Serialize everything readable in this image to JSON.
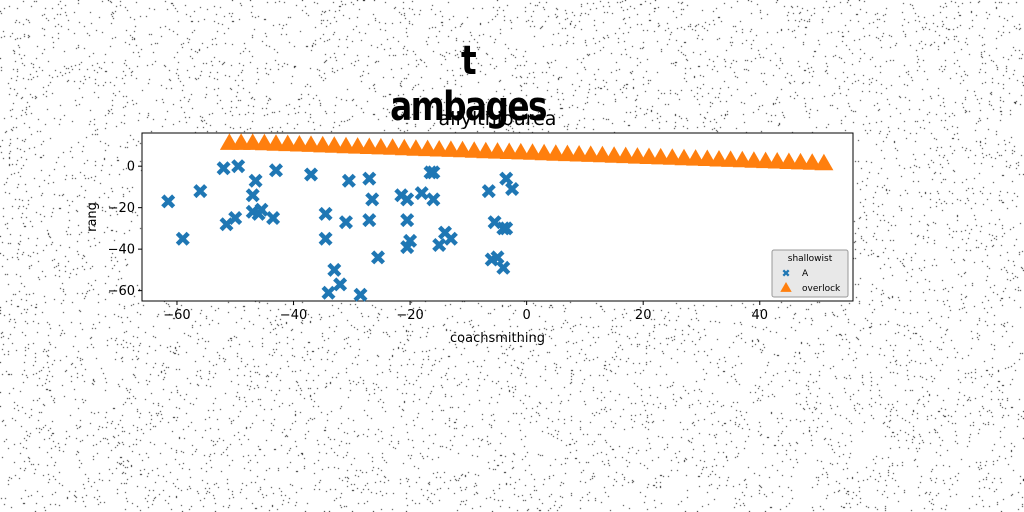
{
  "figure": {
    "suptitle": "t ambages"
  },
  "chart_data": {
    "type": "scatter",
    "title": "allylthiourea",
    "xlabel": "coachsmithing",
    "ylabel": "rang",
    "xlim": [
      -66,
      56
    ],
    "ylim": [
      -65,
      16
    ],
    "xticks": [
      -60,
      -40,
      -20,
      0,
      20,
      40
    ],
    "yticks": [
      0,
      -20,
      -40,
      -60
    ],
    "grid": false,
    "legend": {
      "title": "shallowist",
      "placement": "lower-right"
    },
    "series": [
      {
        "name": "A",
        "marker": "X",
        "color": "#1f77b4",
        "x": [
          -61.5,
          -59,
          -56,
          -52,
          -51.5,
          -49.5,
          -50,
          -47,
          -46.5,
          -47,
          -46,
          -45.5,
          -43,
          -43.5,
          -37,
          -34.5,
          -34.5,
          -34,
          -32,
          -33,
          -31,
          -30.5,
          -28.5,
          -27,
          -26.5,
          -27,
          -25.5,
          -21.5,
          -20.5,
          -20.5,
          -20,
          -20.5,
          -18,
          -16.5,
          -16,
          -16,
          -15,
          -14,
          -13,
          -6.5,
          -6,
          -5,
          -5.5,
          -4,
          -4,
          -3.5,
          -3.5,
          -2.5
        ],
        "y": [
          -17,
          -35,
          -12,
          -1,
          -28,
          0,
          -25,
          -14,
          -7,
          -22,
          -23,
          -21,
          -2,
          -25,
          -4,
          -23,
          -35,
          -61,
          -57,
          -50,
          -27,
          -7,
          -62,
          -6,
          -16,
          -26,
          -44,
          -14,
          -16,
          -39,
          -36,
          -26,
          -13,
          -3,
          -16,
          -3,
          -38,
          -32,
          -35,
          -12,
          -45,
          -44,
          -27,
          -30,
          -49,
          -6,
          -30,
          -11
        ],
        "values": [
          -17,
          -35,
          -12,
          -1,
          -28,
          0,
          -25,
          -14,
          -7,
          -22,
          -23,
          -21,
          -2,
          -25,
          -4,
          -23,
          -35,
          -61,
          -57,
          -50,
          -27,
          -7,
          -62,
          -6,
          -16,
          -26,
          -44,
          -14,
          -16,
          -39,
          -36,
          -26,
          -13,
          -3,
          -16,
          -3,
          -38,
          -32,
          -35,
          -12,
          -45,
          -44,
          -27,
          -30,
          -49,
          -6,
          -30,
          -11
        ]
      },
      {
        "name": "overlock",
        "marker": "^",
        "color": "#ff7f0e",
        "x": [
          -51,
          -49,
          -47,
          -45,
          -43,
          -41,
          -39,
          -37,
          -35,
          -33,
          -31,
          -29,
          -27,
          -25,
          -23,
          -21,
          -19,
          -17,
          -15,
          -13,
          -11,
          -9,
          -7,
          -5,
          -3,
          -1,
          1,
          3,
          5,
          7,
          9,
          11,
          13,
          15,
          17,
          19,
          21,
          23,
          25,
          27,
          29,
          31,
          33,
          35,
          37,
          39,
          41,
          43,
          45,
          47,
          49,
          51
        ],
        "y": [
          11,
          11,
          11,
          10.8,
          10.6,
          10.4,
          10.2,
          10,
          9.8,
          9.6,
          9.4,
          9.2,
          9,
          8.8,
          8.6,
          8.4,
          8.2,
          8,
          7.8,
          7.6,
          7.4,
          7.2,
          7,
          6.8,
          6.6,
          6.4,
          6.2,
          6,
          5.8,
          5.6,
          5.4,
          5.2,
          5,
          4.8,
          4.6,
          4.4,
          4.2,
          4,
          3.8,
          3.6,
          3.4,
          3.2,
          3,
          2.8,
          2.6,
          2.4,
          2.2,
          2,
          1.8,
          1.6,
          1.4,
          1.2
        ],
        "values": [
          11,
          11,
          11,
          10.8,
          10.6,
          10.4,
          10.2,
          10,
          9.8,
          9.6,
          9.4,
          9.2,
          9,
          8.8,
          8.6,
          8.4,
          8.2,
          8,
          7.8,
          7.6,
          7.4,
          7.2,
          7,
          6.8,
          6.6,
          6.4,
          6.2,
          6,
          5.8,
          5.6,
          5.4,
          5.2,
          5,
          4.8,
          4.6,
          4.4,
          4.2,
          4,
          3.8,
          3.6,
          3.4,
          3.2,
          3,
          2.8,
          2.6,
          2.4,
          2.2,
          2,
          1.8,
          1.6,
          1.4,
          1.2
        ]
      }
    ]
  }
}
